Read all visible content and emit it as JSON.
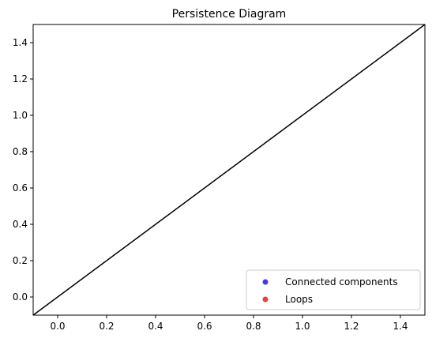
{
  "chart_data": {
    "type": "scatter",
    "title": "Persistence Diagram",
    "xlabel": "",
    "ylabel": "",
    "xlim": [
      -0.1,
      1.5
    ],
    "ylim": [
      -0.1,
      1.5
    ],
    "x_ticks": [
      "0.0",
      "0.2",
      "0.4",
      "0.6",
      "0.8",
      "1.0",
      "1.2",
      "1.4"
    ],
    "y_ticks": [
      "0.0",
      "0.2",
      "0.4",
      "0.6",
      "0.8",
      "1.0",
      "1.2",
      "1.4"
    ],
    "x_tick_values": [
      0.0,
      0.2,
      0.4,
      0.6,
      0.8,
      1.0,
      1.2,
      1.4
    ],
    "y_tick_values": [
      0.0,
      0.2,
      0.4,
      0.6,
      0.8,
      1.0,
      1.2,
      1.4
    ],
    "diagonal": {
      "x": [
        -0.1,
        1.5
      ],
      "y": [
        -0.1,
        1.5
      ],
      "color": "#000000"
    },
    "grid": false,
    "legend_position": "lower-right",
    "series": [
      {
        "name": "Connected components",
        "color": "#3333ee",
        "points": []
      },
      {
        "name": "Loops",
        "color": "#ee3333",
        "points": []
      }
    ]
  }
}
